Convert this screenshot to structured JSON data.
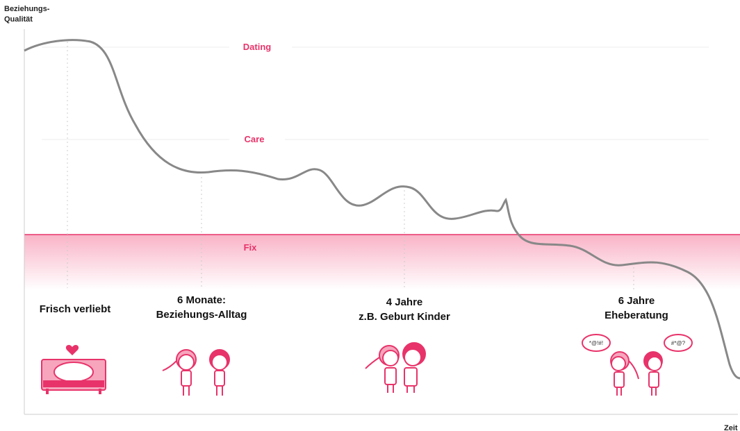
{
  "axis": {
    "y_label": [
      "Beziehungs-",
      "Qualität"
    ],
    "x_label": "Zeit"
  },
  "zones": [
    "Dating",
    "Care",
    "Fix"
  ],
  "milestones": [
    {
      "lines": [
        "Frisch verliebt"
      ]
    },
    {
      "lines": [
        "6 Monate:",
        "Beziehungs-Alltag"
      ]
    },
    {
      "lines": [
        "4 Jahre",
        "z.B. Geburt Kinder"
      ]
    },
    {
      "lines": [
        "6 Jahre",
        "Eheberatung"
      ]
    }
  ],
  "speech_bubbles": [
    "*@!#!",
    "#*@?"
  ]
}
